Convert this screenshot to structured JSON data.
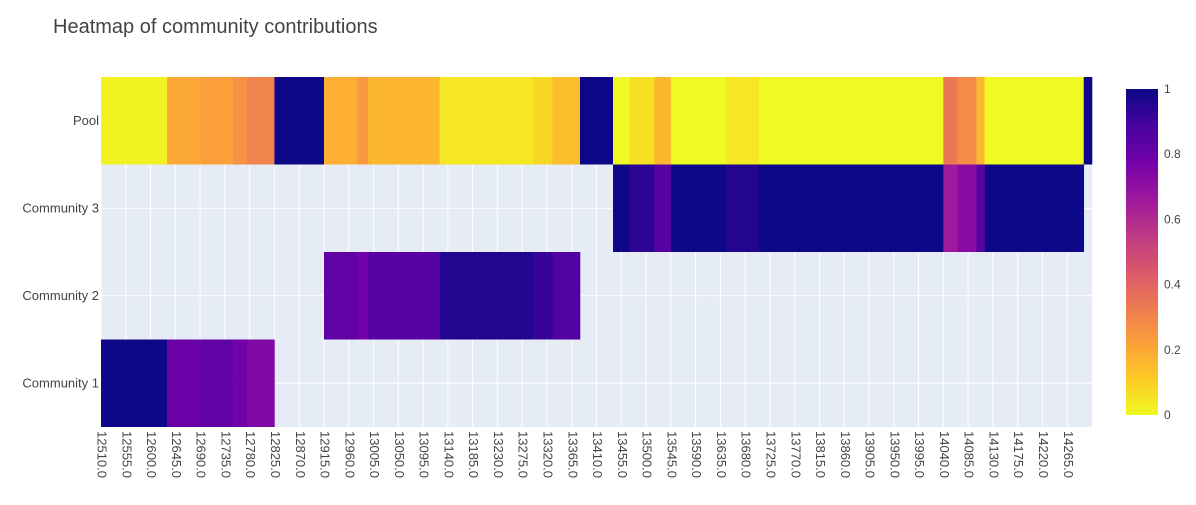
{
  "chart_data": {
    "type": "heatmap",
    "title": "Heatmap of community contributions",
    "xlabel": "",
    "ylabel": "",
    "y_categories": [
      "Community 1",
      "Community 2",
      "Community 3",
      "Pool"
    ],
    "x_range": [
      12510,
      14310
    ],
    "x_ticks": [
      "12510.0",
      "12555.0",
      "12600.0",
      "12645.0",
      "12690.0",
      "12735.0",
      "12780.0",
      "12825.0",
      "12870.0",
      "12915.0",
      "12960.0",
      "13005.0",
      "13050.0",
      "13095.0",
      "13140.0",
      "13185.0",
      "13230.0",
      "13275.0",
      "13320.0",
      "13365.0",
      "13410.0",
      "13455.0",
      "13500.0",
      "13545.0",
      "13590.0",
      "13635.0",
      "13680.0",
      "13725.0",
      "13770.0",
      "13815.0",
      "13860.0",
      "13905.0",
      "13950.0",
      "13995.0",
      "14040.0",
      "14085.0",
      "14130.0",
      "14175.0",
      "14220.0",
      "14265.0"
    ],
    "colorscale": "Plasma",
    "colorbar": {
      "range": [
        0,
        1
      ],
      "ticks": [
        "0",
        "0.2",
        "0.4",
        "0.6",
        "0.8",
        "1"
      ]
    },
    "series": [
      {
        "name": "Community 1",
        "segments": [
          {
            "x0": 12510,
            "x1": 12630,
            "v": 1.0
          },
          {
            "x0": 12630,
            "x1": 12690,
            "v": 0.8
          },
          {
            "x0": 12690,
            "x1": 12750,
            "v": 0.82
          },
          {
            "x0": 12750,
            "x1": 12775,
            "v": 0.78
          },
          {
            "x0": 12775,
            "x1": 12825,
            "v": 0.74
          }
        ]
      },
      {
        "name": "Community 2",
        "segments": [
          {
            "x0": 12915,
            "x1": 12975,
            "v": 0.82
          },
          {
            "x0": 12975,
            "x1": 12995,
            "v": 0.78
          },
          {
            "x0": 12995,
            "x1": 13125,
            "v": 0.84
          },
          {
            "x0": 13125,
            "x1": 13295,
            "v": 0.96
          },
          {
            "x0": 13295,
            "x1": 13330,
            "v": 0.92
          },
          {
            "x0": 13330,
            "x1": 13380,
            "v": 0.86
          }
        ]
      },
      {
        "name": "Community 3",
        "segments": [
          {
            "x0": 13440,
            "x1": 13470,
            "v": 1.0
          },
          {
            "x0": 13470,
            "x1": 13515,
            "v": 0.94
          },
          {
            "x0": 13515,
            "x1": 13545,
            "v": 0.84
          },
          {
            "x0": 13545,
            "x1": 13645,
            "v": 1.0
          },
          {
            "x0": 13645,
            "x1": 13705,
            "v": 0.96
          },
          {
            "x0": 13705,
            "x1": 14040,
            "v": 1.0
          },
          {
            "x0": 14040,
            "x1": 14065,
            "v": 0.66
          },
          {
            "x0": 14065,
            "x1": 14100,
            "v": 0.72
          },
          {
            "x0": 14100,
            "x1": 14115,
            "v": 0.84
          },
          {
            "x0": 14115,
            "x1": 14295,
            "v": 1.0
          }
        ]
      },
      {
        "name": "Pool",
        "segments": [
          {
            "x0": 12510,
            "x1": 12630,
            "v": 0.02
          },
          {
            "x0": 12630,
            "x1": 12690,
            "v": 0.2
          },
          {
            "x0": 12690,
            "x1": 12750,
            "v": 0.22
          },
          {
            "x0": 12750,
            "x1": 12775,
            "v": 0.26
          },
          {
            "x0": 12775,
            "x1": 12825,
            "v": 0.3
          },
          {
            "x0": 12825,
            "x1": 12915,
            "v": 1.0
          },
          {
            "x0": 12915,
            "x1": 12975,
            "v": 0.18
          },
          {
            "x0": 12975,
            "x1": 12995,
            "v": 0.24
          },
          {
            "x0": 12995,
            "x1": 13125,
            "v": 0.16
          },
          {
            "x0": 13125,
            "x1": 13295,
            "v": 0.04
          },
          {
            "x0": 13295,
            "x1": 13330,
            "v": 0.08
          },
          {
            "x0": 13330,
            "x1": 13380,
            "v": 0.14
          },
          {
            "x0": 13380,
            "x1": 13440,
            "v": 1.0
          },
          {
            "x0": 13440,
            "x1": 13470,
            "v": 0.0
          },
          {
            "x0": 13470,
            "x1": 13515,
            "v": 0.06
          },
          {
            "x0": 13515,
            "x1": 13545,
            "v": 0.16
          },
          {
            "x0": 13545,
            "x1": 13645,
            "v": 0.0
          },
          {
            "x0": 13645,
            "x1": 13705,
            "v": 0.04
          },
          {
            "x0": 13705,
            "x1": 14040,
            "v": 0.0
          },
          {
            "x0": 14040,
            "x1": 14065,
            "v": 0.34
          },
          {
            "x0": 14065,
            "x1": 14100,
            "v": 0.28
          },
          {
            "x0": 14100,
            "x1": 14115,
            "v": 0.16
          },
          {
            "x0": 14115,
            "x1": 14295,
            "v": 0.0
          },
          {
            "x0": 14295,
            "x1": 14310,
            "v": 1.0
          }
        ]
      }
    ]
  }
}
